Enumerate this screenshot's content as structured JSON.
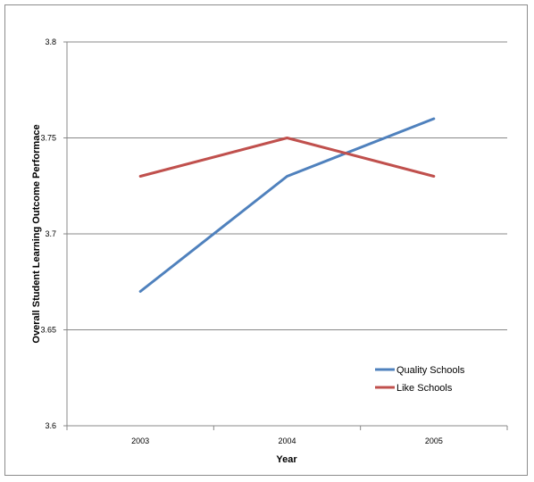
{
  "chart_data": {
    "type": "line",
    "title": "",
    "xlabel": "Year",
    "ylabel": "Overall Student Learning Outcome Performace",
    "categories": [
      "2003",
      "2004",
      "2005"
    ],
    "ylim": [
      3.6,
      3.8
    ],
    "yticks": [
      "3.6",
      "3.65",
      "3.7",
      "3.75",
      "3.8"
    ],
    "grid": true,
    "legend_position": "bottom-right",
    "series": [
      {
        "name": "Quality Schools",
        "color": "#4f81bd",
        "values": [
          3.67,
          3.73,
          3.76
        ]
      },
      {
        "name": "Like Schools",
        "color": "#c0504d",
        "values": [
          3.73,
          3.75,
          3.73
        ]
      }
    ]
  }
}
